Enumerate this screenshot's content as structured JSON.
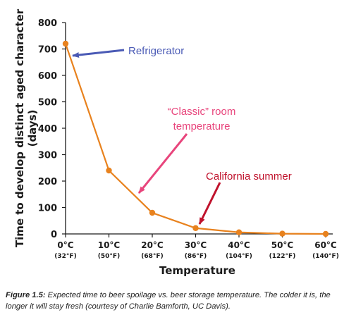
{
  "chart_data": {
    "type": "line",
    "x": [
      "0°C",
      "10°C",
      "20°C",
      "30°C",
      "40°C",
      "50°C",
      "60°C"
    ],
    "x_sublabels": [
      "(32°F)",
      "(50°F)",
      "(68°F)",
      "(86°F)",
      "(104°F)",
      "(122°F)",
      "(140°F)"
    ],
    "series": [
      {
        "values": [
          720,
          240,
          80,
          22,
          6,
          1,
          0
        ]
      }
    ],
    "xlabel": "Temperature",
    "ylabel_line1": "Time to develop distinct aged character",
    "ylabel_line2": "(days)",
    "ylim": [
      0,
      800
    ],
    "yticks": [
      0,
      100,
      200,
      300,
      400,
      500,
      600,
      700,
      800
    ],
    "grid": false,
    "legend": "none",
    "annotations": [
      {
        "text": "Refrigerator",
        "target_x": "0°C",
        "target_y": 720,
        "color": "#4a5ab5"
      },
      {
        "text_line1": "“Classic” room",
        "text_line2": "temperature",
        "target_x": "15°C",
        "target_y": 145,
        "color": "#e8457c"
      },
      {
        "text": "California summer",
        "target_x": "30°C",
        "target_y": 22,
        "color": "#c0122c"
      }
    ],
    "colors": {
      "line": "#e8821e",
      "axis": "#1a1a1a"
    }
  },
  "caption": {
    "lead": "Figure 1.5:",
    "text": " Expected time to beer spoilage vs. beer storage temperature. The colder it is, the longer it will stay fresh (courtesy of Charlie Bamforth, UC Davis)."
  }
}
